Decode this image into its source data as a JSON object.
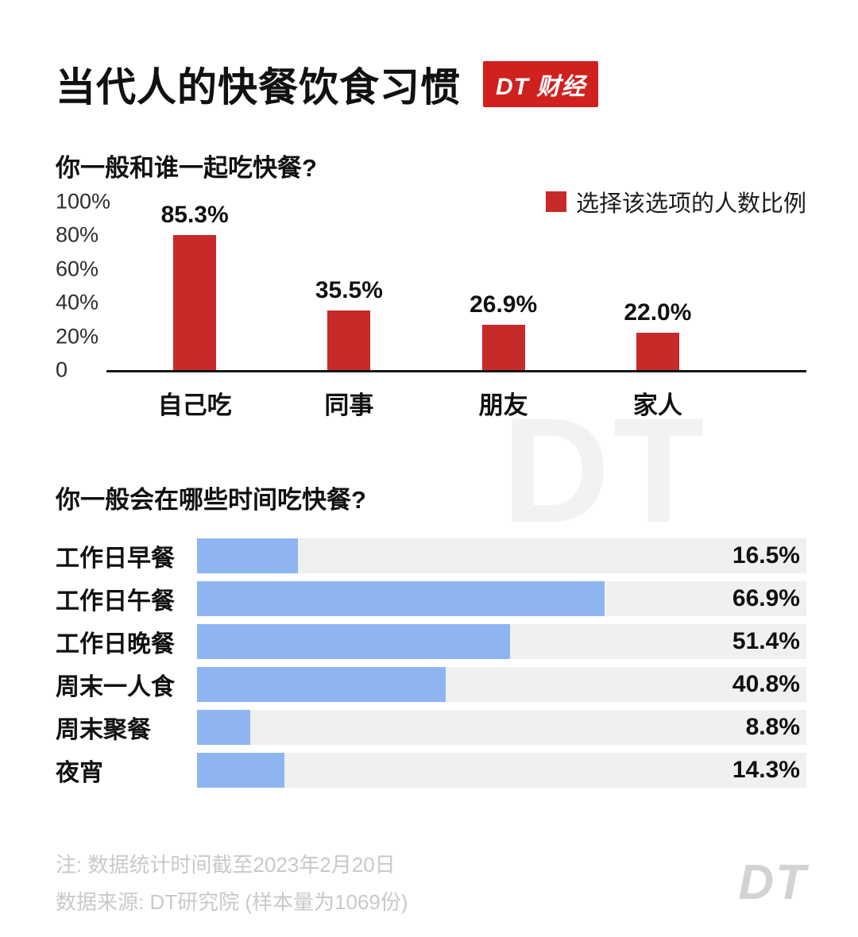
{
  "header": {
    "title": "当代人的快餐饮食习惯",
    "badge": "DT 财经"
  },
  "watermark": "DT",
  "colors": {
    "red": "#d0211e",
    "bar_red": "#c62a29",
    "bar_blue": "#8fb5f1",
    "track": "#f0f0f0",
    "watermark": "#f2f2f2",
    "note": "#c9c9c9",
    "logo": "#d3d3d3"
  },
  "chart_data": [
    {
      "type": "bar",
      "title": "你一般和谁一起吃快餐?",
      "categories": [
        "自己吃",
        "同事",
        "朋友",
        "家人"
      ],
      "values": [
        85.3,
        35.5,
        26.9,
        22.0
      ],
      "value_labels": [
        "85.3%",
        "35.5%",
        "26.9%",
        "22.0%"
      ],
      "ylim": [
        0,
        100
      ],
      "yticks": [
        {
          "label": "100%",
          "v": 100
        },
        {
          "label": "80%",
          "v": 80
        },
        {
          "label": "60%",
          "v": 60
        },
        {
          "label": "40%",
          "v": 40
        },
        {
          "label": "20%",
          "v": 20
        },
        {
          "label": "0",
          "v": 0
        }
      ],
      "legend": "选择该选项的人数比例",
      "legend_position": "top-right",
      "grid": false,
      "bar_color": "#c62a29"
    },
    {
      "type": "bar-horizontal",
      "title": "你一般会在哪些时间吃快餐?",
      "categories": [
        "工作日早餐",
        "工作日午餐",
        "工作日晚餐",
        "周末一人食",
        "周末聚餐",
        "夜宵"
      ],
      "values": [
        16.5,
        66.9,
        51.4,
        40.8,
        8.8,
        14.3
      ],
      "value_labels": [
        "16.5%",
        "66.9%",
        "51.4%",
        "40.8%",
        "8.8%",
        "14.3%"
      ],
      "xlim": [
        0,
        100
      ],
      "grid": false,
      "bar_color": "#8fb5f1",
      "track_color": "#f0f0f0"
    }
  ],
  "footer": {
    "note1": "注: 数据统计时间截至2023年2月20日",
    "note2": "数据来源: DT研究院 (样本量为1069份)",
    "logo": "DT"
  }
}
